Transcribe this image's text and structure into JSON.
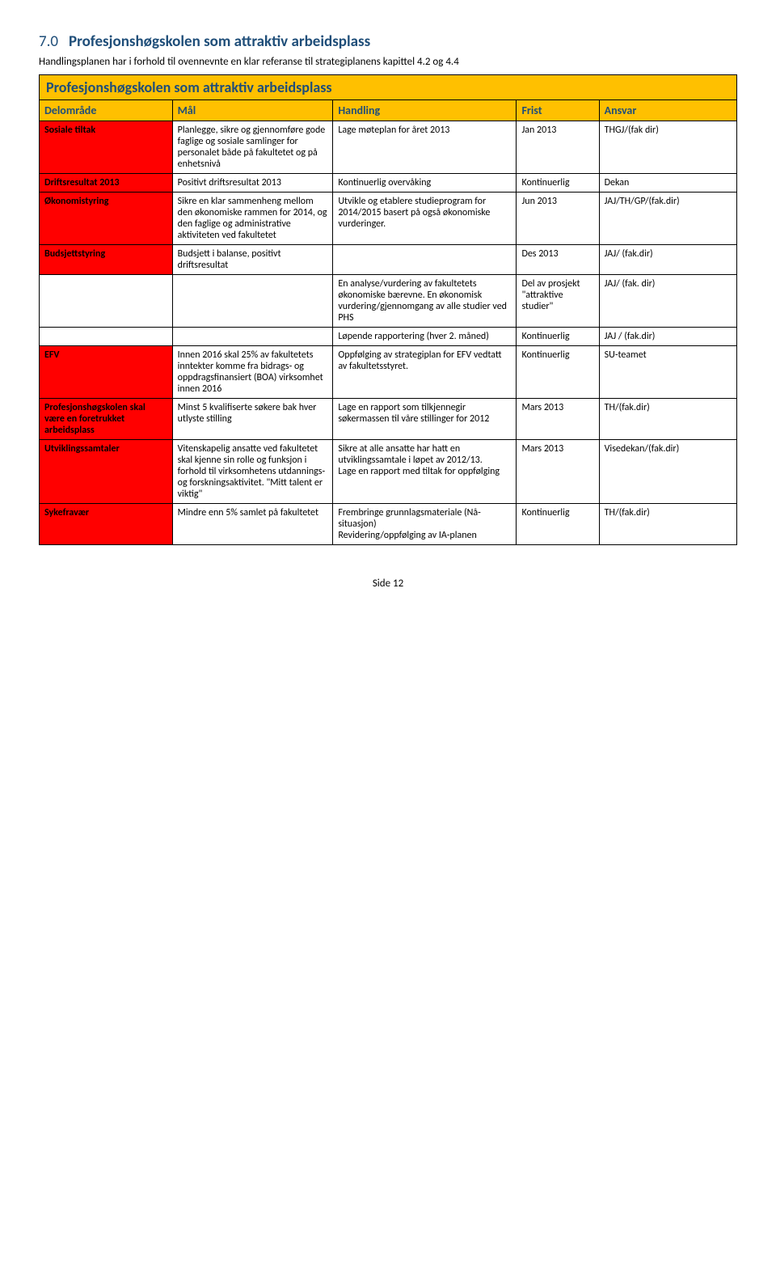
{
  "section": {
    "number": "7.0",
    "title": "Profesjonshøgskolen som attraktiv arbeidsplass",
    "intro": "Handlingsplanen har i forhold til ovennevnte en klar referanse til strategiplanens kapittel 4.2 og 4.4"
  },
  "table": {
    "title": "Profesjonshøgskolen som attraktiv arbeidsplass",
    "headers": {
      "delomrade": "Delområde",
      "mal": "Mål",
      "handling": "Handling",
      "frist": "Frist",
      "ansvar": "Ansvar"
    },
    "rows": [
      {
        "delomrade": "Sosiale tiltak",
        "mal": "Planlegge, sikre og gjennomføre gode faglige og sosiale samlinger for personalet både på fakultetet og på enhetsnivå",
        "handling": "Lage møteplan for året 2013",
        "frist": "Jan 2013",
        "ansvar": "THGJ/(fak dir)"
      },
      {
        "delomrade": "Driftsresultat 2013",
        "mal": "Positivt driftsresultat 2013",
        "handling": "Kontinuerlig overvåking",
        "frist": "Kontinuerlig",
        "ansvar": "Dekan"
      },
      {
        "delomrade": "Økonomistyring",
        "mal": "Sikre en klar sammenheng mellom den økonomiske rammen for 2014, og den faglige og administrative aktiviteten ved fakultetet",
        "handling": "Utvikle og etablere studieprogram for 2014/2015 basert på også økonomiske vurderinger.",
        "frist": "Jun 2013",
        "ansvar": "JAJ/TH/GP/(fak.dir)"
      },
      {
        "delomrade": "Budsjettstyring",
        "mal": "Budsjett i balanse, positivt driftsresultat",
        "handling": "",
        "frist": "Des 2013",
        "ansvar": "JAJ/ (fak.dir)"
      },
      {
        "delomrade": "",
        "mal": "",
        "handling": "En analyse/vurdering av fakultetets økonomiske bærevne. En økonomisk vurdering/gjennomgang av alle studier ved PHS",
        "frist": "Del av prosjekt \"attraktive studier\"",
        "ansvar": "JAJ/ (fak. dir)"
      },
      {
        "delomrade": "",
        "mal": "",
        "handling": "Løpende rapportering (hver 2. måned)",
        "frist": "Kontinuerlig",
        "ansvar": "JAJ / (fak.dir)"
      },
      {
        "delomrade": "EFV",
        "mal": "Innen 2016 skal 25% av fakultetets inntekter komme fra bidrags- og oppdragsfinansiert (BOA) virksomhet innen 2016",
        "handling": "Oppfølging av strategiplan for EFV vedtatt av fakultetsstyret.",
        "frist": "Kontinuerlig",
        "ansvar": "SU-teamet"
      },
      {
        "delomrade": "Profesjonshøgskolen skal være en foretrukket arbeidsplass",
        "mal": "Minst 5 kvalifiserte søkere bak hver utlyste stilling",
        "handling": "Lage en rapport som tilkjennegir søkermassen til våre stillinger for 2012",
        "frist": "Mars 2013",
        "ansvar": "TH/(fak.dir)"
      },
      {
        "delomrade": "Utviklingssamtaler",
        "mal": "Vitenskapelig ansatte ved fakultetet skal kjenne sin rolle og funksjon i forhold til virksomhetens utdannings- og forskningsaktivitet. \"Mitt talent er viktig\"",
        "handling": "Sikre at alle ansatte har hatt en utviklingssamtale i løpet av 2012/13.\nLage en rapport med tiltak for oppfølging",
        "frist": "Mars 2013",
        "ansvar": "Visedekan/(fak.dir)"
      },
      {
        "delomrade": "Sykefravær",
        "mal": "Mindre enn 5% samlet på fakultetet",
        "handling": "Frembringe grunnlagsmateriale (Nå-situasjon)\nRevidering/oppfølging av IA-planen",
        "frist": "Kontinuerlig",
        "ansvar": "TH/(fak.dir)"
      }
    ]
  },
  "footer": "Side 12"
}
